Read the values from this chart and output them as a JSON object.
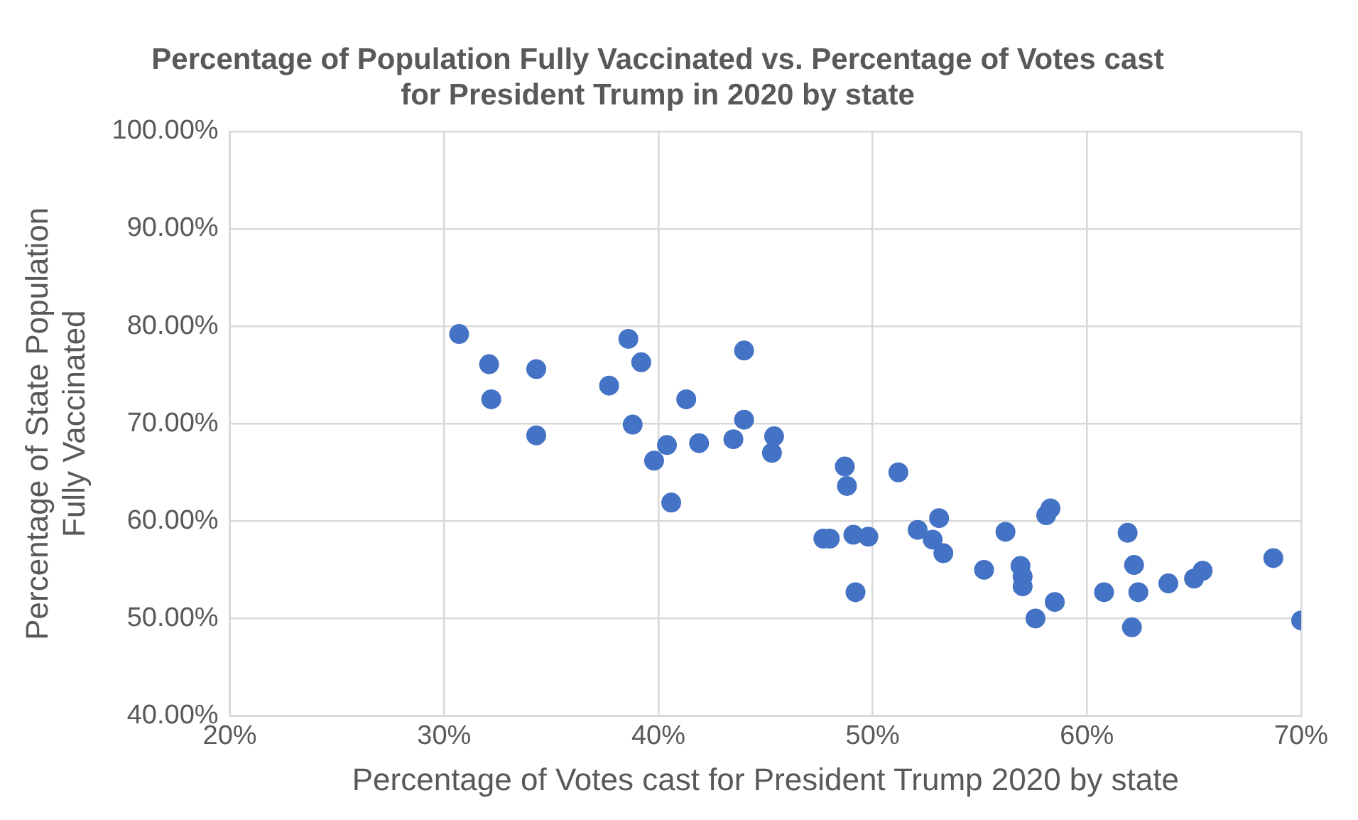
{
  "chart_data": {
    "type": "scatter",
    "title": "Percentage of Population Fully Vaccinated vs. Percentage of Votes cast for President Trump in 2020 by state",
    "xlabel": "Percentage of Votes cast for President Trump 2020 by state",
    "ylabel": "Percentage of State Population Fully Vaccinated",
    "x": [
      30.7,
      32.1,
      32.2,
      34.3,
      34.3,
      37.7,
      38.6,
      39.2,
      38.8,
      39.8,
      40.4,
      40.6,
      41.3,
      41.9,
      43.5,
      44.0,
      44.0,
      45.4,
      45.3,
      48.7,
      48.8,
      47.7,
      48.0,
      49.1,
      49.2,
      49.8,
      51.2,
      52.1,
      52.8,
      53.1,
      53.3,
      55.2,
      56.2,
      56.9,
      57.0,
      57.0,
      57.6,
      58.3,
      58.1,
      58.5,
      60.8,
      61.9,
      62.1,
      62.2,
      62.4,
      63.8,
      65.0,
      65.4,
      68.7,
      70.0
    ],
    "series": [
      {
        "color": "#4472c4",
        "values": [
          79.2,
          76.1,
          72.5,
          75.6,
          68.8,
          73.9,
          78.7,
          76.3,
          69.9,
          66.2,
          67.8,
          61.9,
          72.5,
          68.0,
          68.4,
          77.5,
          70.4,
          68.7,
          67.0,
          65.6,
          63.6,
          58.2,
          58.2,
          58.6,
          52.7,
          58.4,
          65.0,
          59.1,
          58.1,
          60.3,
          56.7,
          55.0,
          58.9,
          55.4,
          54.3,
          53.3,
          50.0,
          61.3,
          60.6,
          51.7,
          52.7,
          58.8,
          49.1,
          55.5,
          52.7,
          53.6,
          54.1,
          54.9,
          56.2,
          49.8
        ]
      }
    ],
    "xlim": [
      20,
      70
    ],
    "xticks": [
      {
        "value": 20,
        "label": "20%"
      },
      {
        "value": 30,
        "label": "30%"
      },
      {
        "value": 40,
        "label": "40%"
      },
      {
        "value": 50,
        "label": "50%"
      },
      {
        "value": 60,
        "label": "60%"
      },
      {
        "value": 70,
        "label": "70%"
      }
    ],
    "ylim": [
      40,
      100
    ],
    "yticks": [
      {
        "value": 40,
        "label": "40.00%"
      },
      {
        "value": 50,
        "label": "50.00%"
      },
      {
        "value": 60,
        "label": "60.00%"
      },
      {
        "value": 70,
        "label": "70.00%"
      },
      {
        "value": 80,
        "label": "80.00%"
      },
      {
        "value": 90,
        "label": "90.00%"
      },
      {
        "value": 100,
        "label": "100.00%"
      }
    ],
    "grid": true,
    "legend": false,
    "marker": "circle"
  }
}
